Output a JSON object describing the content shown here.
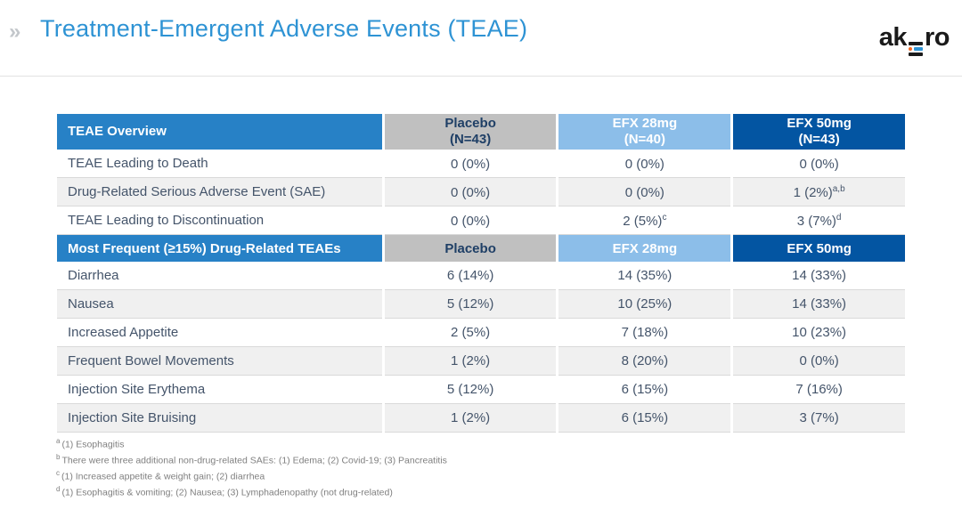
{
  "header": {
    "chevron_icon": "»",
    "title": "Treatment-Emergent Adverse Events (TEAE)",
    "logo": {
      "left": "ak",
      "right": "ro"
    }
  },
  "colors": {
    "title_blue": "#2e93d4",
    "section_header_blue": "#2781c6",
    "placebo_header_gray": "#c0c0c0",
    "efx28_light_blue": "#8cbee9",
    "efx50_dark_blue": "#0355a2",
    "alt_row_gray": "#f0f0f0",
    "body_text_navy": "#44546a",
    "placebo_text_navy": "#1f3f66",
    "footnote_gray": "#808080",
    "logo_black": "#1a1a1a",
    "logo_orange": "#f26822",
    "logo_blue": "#2e93d4"
  },
  "table": {
    "section1": {
      "header_label": "TEAE Overview",
      "columns": [
        {
          "line1": "Placebo",
          "line2": "(N=43)"
        },
        {
          "line1": "EFX 28mg",
          "line2": "(N=40)"
        },
        {
          "line1": "EFX 50mg",
          "line2": "(N=43)"
        }
      ],
      "rows": [
        {
          "label": "TEAE Leading to Death",
          "values": [
            {
              "text": "0 (0%)",
              "sup": ""
            },
            {
              "text": "0 (0%)",
              "sup": ""
            },
            {
              "text": "0 (0%)",
              "sup": ""
            }
          ]
        },
        {
          "label": "Drug-Related Serious Adverse Event (SAE)",
          "values": [
            {
              "text": "0 (0%)",
              "sup": ""
            },
            {
              "text": "0 (0%)",
              "sup": ""
            },
            {
              "text": "1 (2%)",
              "sup": "a,b"
            }
          ]
        },
        {
          "label": "TEAE Leading to Discontinuation",
          "values": [
            {
              "text": "0 (0%)",
              "sup": ""
            },
            {
              "text": "2 (5%)",
              "sup": "c"
            },
            {
              "text": "3 (7%)",
              "sup": "d"
            }
          ]
        }
      ]
    },
    "section2": {
      "header_label": "Most Frequent (≥15%) Drug-Related TEAEs",
      "columns": [
        "Placebo",
        "EFX 28mg",
        "EFX 50mg"
      ],
      "rows": [
        {
          "label": "Diarrhea",
          "values": [
            {
              "text": "6 (14%)",
              "sup": ""
            },
            {
              "text": "14 (35%)",
              "sup": ""
            },
            {
              "text": "14 (33%)",
              "sup": ""
            }
          ]
        },
        {
          "label": "Nausea",
          "values": [
            {
              "text": "5 (12%)",
              "sup": ""
            },
            {
              "text": "10 (25%)",
              "sup": ""
            },
            {
              "text": "14 (33%)",
              "sup": ""
            }
          ]
        },
        {
          "label": "Increased Appetite",
          "values": [
            {
              "text": "2 (5%)",
              "sup": ""
            },
            {
              "text": "7 (18%)",
              "sup": ""
            },
            {
              "text": "10 (23%)",
              "sup": ""
            }
          ]
        },
        {
          "label": "Frequent Bowel Movements",
          "values": [
            {
              "text": "1 (2%)",
              "sup": ""
            },
            {
              "text": "8 (20%)",
              "sup": ""
            },
            {
              "text": "0 (0%)",
              "sup": ""
            }
          ]
        },
        {
          "label": "Injection Site Erythema",
          "values": [
            {
              "text": "5 (12%)",
              "sup": ""
            },
            {
              "text": "6 (15%)",
              "sup": ""
            },
            {
              "text": "7 (16%)",
              "sup": ""
            }
          ]
        },
        {
          "label": "Injection Site Bruising",
          "values": [
            {
              "text": "1 (2%)",
              "sup": ""
            },
            {
              "text": "6 (15%)",
              "sup": ""
            },
            {
              "text": "3 (7%)",
              "sup": ""
            }
          ]
        }
      ]
    }
  },
  "footnotes": [
    {
      "marker": "a",
      "text": "(1) Esophagitis"
    },
    {
      "marker": "b",
      "text": "There were three additional non-drug-related SAEs: (1) Edema; (2) Covid-19; (3) Pancreatitis"
    },
    {
      "marker": "c",
      "text": "(1) Increased appetite & weight gain; (2) diarrhea"
    },
    {
      "marker": "d",
      "text": "(1) Esophagitis & vomiting; (2) Nausea; (3) Lymphadenopathy (not drug-related)"
    }
  ]
}
